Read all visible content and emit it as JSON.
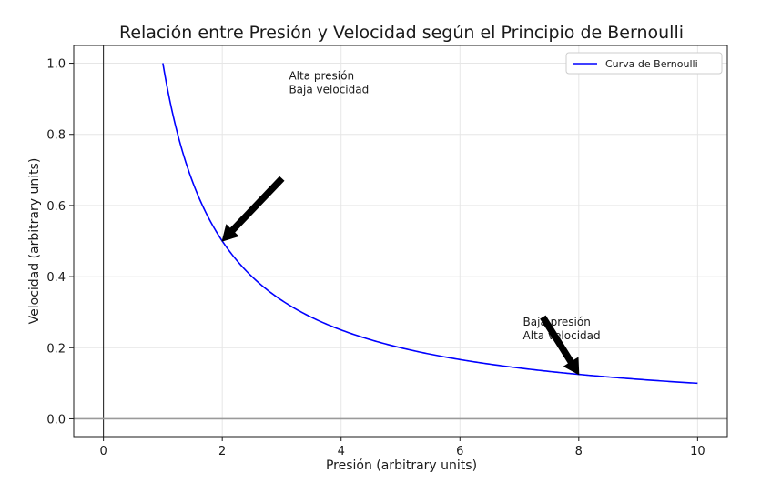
{
  "chart_data": {
    "type": "line",
    "title": "Relación entre Presión y Velocidad según el Principio de Bernoulli",
    "xlabel": "Presión (arbitrary units)",
    "ylabel": "Velocidad (arbitrary units)",
    "xlim": [
      -0.5,
      10.5
    ],
    "ylim": [
      -0.05,
      1.05
    ],
    "xticks": [
      0,
      2,
      4,
      6,
      8,
      10
    ],
    "yticks": [
      0.0,
      0.2,
      0.4,
      0.6,
      0.8,
      1.0
    ],
    "xtick_labels": [
      "0",
      "2",
      "4",
      "6",
      "8",
      "10"
    ],
    "ytick_labels": [
      "0.0",
      "0.2",
      "0.4",
      "0.6",
      "0.8",
      "1.0"
    ],
    "grid": true,
    "legend_position": "upper-right",
    "series": [
      {
        "name": "Curva de Bernoulli",
        "color": "#0000ff",
        "function": "y = 1/x",
        "x": [
          1,
          1.25,
          1.5,
          1.75,
          2,
          2.5,
          3,
          3.5,
          4,
          5,
          6,
          7,
          8,
          9,
          10
        ],
        "y": [
          1.0,
          0.8,
          0.667,
          0.571,
          0.5,
          0.4,
          0.333,
          0.286,
          0.25,
          0.2,
          0.167,
          0.143,
          0.125,
          0.111,
          0.1
        ]
      }
    ],
    "annotations": [
      {
        "lines": [
          "Alta presión",
          "Baja velocidad"
        ],
        "x": 2,
        "y": 0.5,
        "text_x": 3,
        "text_y": 0.75
      },
      {
        "lines": [
          "Baja presión",
          "Alta velocidad"
        ],
        "x": 8,
        "y": 0.125,
        "text_x": 7,
        "text_y": 0.3
      }
    ]
  }
}
